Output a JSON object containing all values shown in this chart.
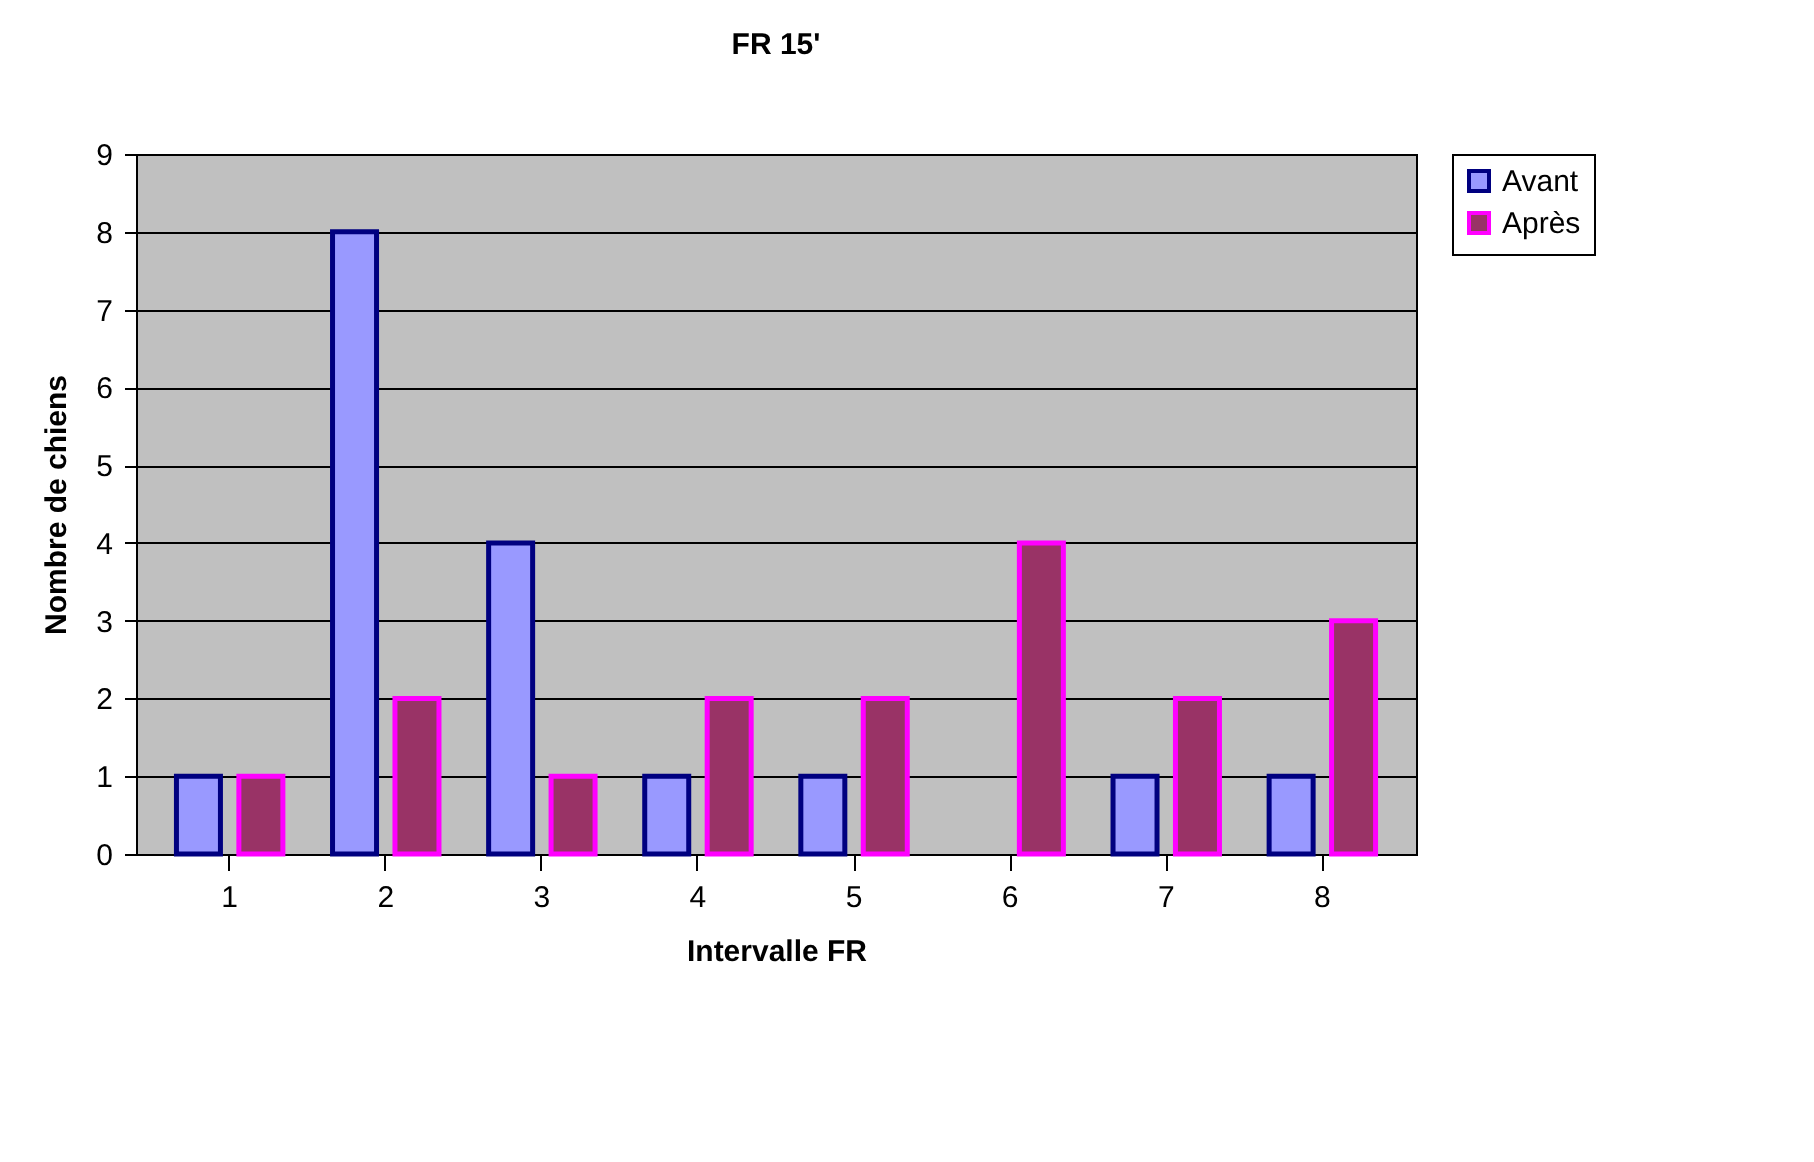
{
  "chart_data": {
    "type": "bar",
    "title": "FR 15'",
    "xlabel": "Intervalle FR",
    "ylabel": "Nombre de chiens",
    "categories": [
      "1",
      "2",
      "3",
      "4",
      "5",
      "6",
      "7",
      "8"
    ],
    "series": [
      {
        "name": "Avant",
        "color": "#9999ff",
        "values": [
          1,
          8,
          4,
          1,
          1,
          null,
          1,
          1
        ]
      },
      {
        "name": "Après",
        "color": "#993366",
        "values": [
          1,
          2,
          1,
          2,
          2,
          4,
          2,
          3
        ]
      }
    ],
    "ylim": [
      0,
      9
    ],
    "yticks": [
      0,
      1,
      2,
      3,
      4,
      5,
      6,
      7,
      8,
      9
    ],
    "grid": "y",
    "legend": "right"
  }
}
